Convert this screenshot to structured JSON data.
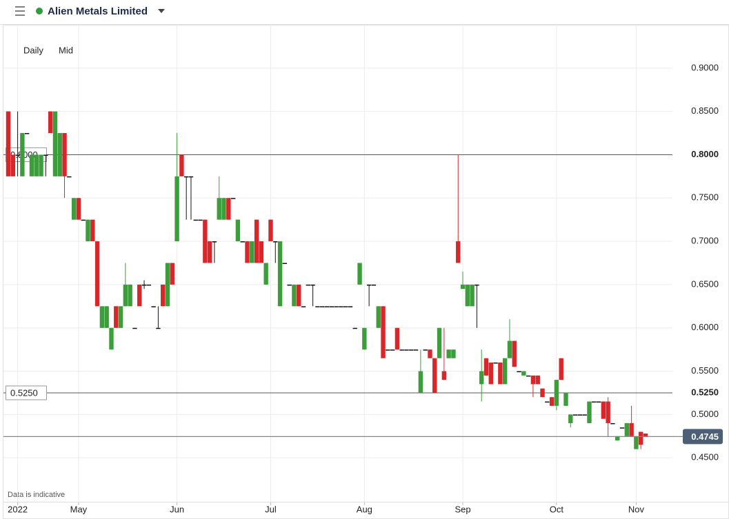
{
  "chart_data": {
    "type": "candlestick",
    "title": "Alien Metals Limited",
    "intervals": [
      "Daily",
      "Mid"
    ],
    "footnote": "Data is indicative",
    "up_color": "#3b9e3b",
    "down_color": "#d8262b",
    "flat_color": "#111111",
    "grid": true,
    "ylim": [
      0.4,
      0.95
    ],
    "yticks": [
      {
        "value": 0.45,
        "label": "0.4500"
      },
      {
        "value": 0.5,
        "label": "0.5000"
      },
      {
        "value": 0.55,
        "label": "0.5500"
      },
      {
        "value": 0.6,
        "label": "0.6000"
      },
      {
        "value": 0.65,
        "label": "0.6500"
      },
      {
        "value": 0.7,
        "label": "0.7000"
      },
      {
        "value": 0.75,
        "label": "0.7500"
      },
      {
        "value": 0.8,
        "label": "0.8000"
      },
      {
        "value": 0.85,
        "label": "0.8500"
      },
      {
        "value": 0.9,
        "label": "0.9000"
      }
    ],
    "hlines": [
      {
        "value": 0.8,
        "label": "0.8000"
      },
      {
        "value": 0.525,
        "label": "0.5250"
      }
    ],
    "last_price": 0.4745,
    "categories": [
      null,
      null,
      "2022",
      null,
      null,
      null,
      null,
      null,
      null,
      null,
      null,
      null,
      null,
      null,
      null,
      "May",
      null,
      null,
      null,
      null,
      null,
      null,
      null,
      null,
      null,
      null,
      null,
      null,
      null,
      null,
      null,
      null,
      null,
      null,
      null,
      null,
      "Jun",
      null,
      null,
      null,
      null,
      null,
      null,
      null,
      null,
      null,
      null,
      null,
      null,
      null,
      null,
      null,
      null,
      null,
      null,
      null,
      "Jul",
      null,
      null,
      null,
      null,
      null,
      null,
      null,
      null,
      null,
      null,
      null,
      null,
      null,
      null,
      null,
      null,
      null,
      null,
      null,
      "Aug",
      null,
      null,
      null,
      null,
      null,
      null,
      null,
      null,
      null,
      null,
      null,
      null,
      null,
      null,
      null,
      null,
      null,
      null,
      null,
      null,
      "Sep",
      null,
      null,
      null,
      null,
      null,
      null,
      null,
      null,
      null,
      null,
      null,
      null,
      null,
      null,
      null,
      null,
      null,
      null,
      null,
      "Oct",
      null,
      null,
      null,
      null,
      null,
      null,
      null,
      null,
      null,
      null,
      null,
      null,
      null,
      null,
      null,
      null,
      "Nov",
      null,
      null
    ],
    "open": [
      0.85,
      0.8,
      0.8,
      0.775,
      0.825,
      0.775,
      0.775,
      0.775,
      0.8,
      0.85,
      0.775,
      0.775,
      0.825,
      0.775,
      0.725,
      0.75,
      0.725,
      0.7,
      0.725,
      0.7,
      0.6,
      0.6,
      0.575,
      0.625,
      0.6,
      0.625,
      0.625,
      0.6,
      0.65,
      0.65,
      0.65,
      0.625,
      0.6,
      0.65,
      0.625,
      0.675,
      0.7,
      0.8,
      0.775,
      0.775,
      0.725,
      0.725,
      0.725,
      0.7,
      0.7,
      0.725,
      0.725,
      0.75,
      0.75,
      0.7,
      0.7,
      0.7,
      0.675,
      0.725,
      0.7,
      0.65,
      0.725,
      0.7,
      0.625,
      0.675,
      0.65,
      0.625,
      0.65,
      0.625,
      0.65,
      0.65,
      0.625,
      0.625,
      0.625,
      0.625,
      0.625,
      0.625,
      0.625,
      0.625,
      0.6,
      0.65,
      0.575,
      0.65,
      0.65,
      0.6,
      0.625,
      0.575,
      0.575,
      0.6,
      0.575,
      0.575,
      0.575,
      0.575,
      0.525,
      0.575,
      0.575,
      0.565,
      0.565,
      0.55,
      0.565,
      0.565,
      0.7,
      0.645,
      0.625,
      0.625,
      0.65,
      0.535,
      0.565,
      0.56,
      0.56,
      0.56,
      0.535,
      0.565,
      0.585,
      0.55,
      0.545,
      0.545,
      0.545,
      0.545,
      0.53,
      0.515,
      0.52,
      0.51,
      0.565,
      0.51,
      0.49,
      0.5,
      0.5,
      0.5,
      0.49,
      0.515,
      0.515,
      0.515,
      0.515,
      0.49,
      0.47,
      0.485,
      0.475,
      0.49,
      0.46,
      0.48,
      0.478
    ],
    "high": [
      0.85,
      0.8,
      0.85,
      0.825,
      0.825,
      0.8,
      0.8,
      0.8,
      0.8,
      0.85,
      0.85,
      0.825,
      0.825,
      0.775,
      0.75,
      0.75,
      0.725,
      0.725,
      0.725,
      0.7,
      0.625,
      0.625,
      0.6,
      0.625,
      0.625,
      0.675,
      0.65,
      0.6,
      0.65,
      0.655,
      0.65,
      0.625,
      0.625,
      0.65,
      0.675,
      0.675,
      0.825,
      0.8,
      0.775,
      0.775,
      0.725,
      0.725,
      0.725,
      0.7,
      0.7,
      0.775,
      0.75,
      0.75,
      0.75,
      0.725,
      0.7,
      0.7,
      0.7,
      0.725,
      0.7,
      0.675,
      0.725,
      0.7,
      0.7,
      0.675,
      0.65,
      0.65,
      0.65,
      0.625,
      0.65,
      0.65,
      0.625,
      0.625,
      0.625,
      0.625,
      0.625,
      0.625,
      0.625,
      0.625,
      0.6,
      0.675,
      0.6,
      0.65,
      0.65,
      0.625,
      0.625,
      0.575,
      0.575,
      0.6,
      0.575,
      0.575,
      0.575,
      0.575,
      0.575,
      0.575,
      0.575,
      0.565,
      0.6,
      0.6,
      0.575,
      0.575,
      0.8,
      0.665,
      0.65,
      0.65,
      0.65,
      0.575,
      0.565,
      0.56,
      0.56,
      0.56,
      0.565,
      0.61,
      0.585,
      0.55,
      0.55,
      0.545,
      0.545,
      0.545,
      0.53,
      0.515,
      0.52,
      0.54,
      0.565,
      0.525,
      0.5,
      0.5,
      0.5,
      0.5,
      0.515,
      0.515,
      0.515,
      0.515,
      0.52,
      0.49,
      0.475,
      0.485,
      0.49,
      0.51,
      0.475,
      0.48,
      0.478
    ],
    "low": [
      0.775,
      0.775,
      0.775,
      0.775,
      0.825,
      0.775,
      0.775,
      0.775,
      0.775,
      0.825,
      0.775,
      0.775,
      0.75,
      0.775,
      0.725,
      0.725,
      0.725,
      0.7,
      0.7,
      0.625,
      0.6,
      0.6,
      0.575,
      0.6,
      0.6,
      0.625,
      0.625,
      0.6,
      0.625,
      0.645,
      0.65,
      0.625,
      0.6,
      0.625,
      0.625,
      0.65,
      0.7,
      0.775,
      0.725,
      0.725,
      0.725,
      0.725,
      0.675,
      0.675,
      0.675,
      0.725,
      0.725,
      0.725,
      0.75,
      0.7,
      0.7,
      0.675,
      0.675,
      0.675,
      0.675,
      0.65,
      0.7,
      0.675,
      0.625,
      0.675,
      0.65,
      0.625,
      0.625,
      0.625,
      0.65,
      0.625,
      0.625,
      0.625,
      0.625,
      0.625,
      0.625,
      0.625,
      0.625,
      0.625,
      0.6,
      0.65,
      0.575,
      0.625,
      0.65,
      0.6,
      0.565,
      0.575,
      0.575,
      0.575,
      0.575,
      0.575,
      0.575,
      0.575,
      0.525,
      0.575,
      0.565,
      0.525,
      0.565,
      0.54,
      0.565,
      0.565,
      0.675,
      0.645,
      0.625,
      0.625,
      0.6,
      0.515,
      0.545,
      0.535,
      0.56,
      0.535,
      0.535,
      0.565,
      0.555,
      0.55,
      0.545,
      0.545,
      0.52,
      0.535,
      0.52,
      0.515,
      0.51,
      0.505,
      0.54,
      0.51,
      0.485,
      0.5,
      0.5,
      0.5,
      0.49,
      0.515,
      0.515,
      0.495,
      0.475,
      0.49,
      0.47,
      0.485,
      0.475,
      0.475,
      0.46,
      0.46,
      0.474
    ],
    "close": [
      0.775,
      0.775,
      0.8,
      0.825,
      0.825,
      0.8,
      0.8,
      0.8,
      0.8,
      0.825,
      0.85,
      0.825,
      0.775,
      0.775,
      0.75,
      0.725,
      0.725,
      0.725,
      0.7,
      0.625,
      0.625,
      0.625,
      0.6,
      0.6,
      0.625,
      0.65,
      0.65,
      0.6,
      0.625,
      0.65,
      0.65,
      0.625,
      0.6,
      0.625,
      0.675,
      0.65,
      0.775,
      0.775,
      0.775,
      0.775,
      0.725,
      0.725,
      0.675,
      0.675,
      0.7,
      0.75,
      0.75,
      0.725,
      0.75,
      0.725,
      0.7,
      0.675,
      0.7,
      0.675,
      0.675,
      0.675,
      0.7,
      0.7,
      0.7,
      0.675,
      0.65,
      0.65,
      0.625,
      0.625,
      0.65,
      0.65,
      0.625,
      0.625,
      0.625,
      0.625,
      0.625,
      0.625,
      0.625,
      0.625,
      0.6,
      0.675,
      0.6,
      0.65,
      0.65,
      0.625,
      0.565,
      0.575,
      0.575,
      0.575,
      0.575,
      0.575,
      0.575,
      0.575,
      0.55,
      0.575,
      0.565,
      0.525,
      0.6,
      0.54,
      0.575,
      0.575,
      0.675,
      0.65,
      0.65,
      0.65,
      0.65,
      0.55,
      0.545,
      0.535,
      0.56,
      0.535,
      0.565,
      0.585,
      0.555,
      0.55,
      0.55,
      0.545,
      0.535,
      0.535,
      0.52,
      0.515,
      0.51,
      0.54,
      0.54,
      0.525,
      0.5,
      0.5,
      0.5,
      0.5,
      0.515,
      0.515,
      0.515,
      0.495,
      0.49,
      0.49,
      0.475,
      0.485,
      0.49,
      0.475,
      0.475,
      0.465,
      0.474
    ]
  }
}
